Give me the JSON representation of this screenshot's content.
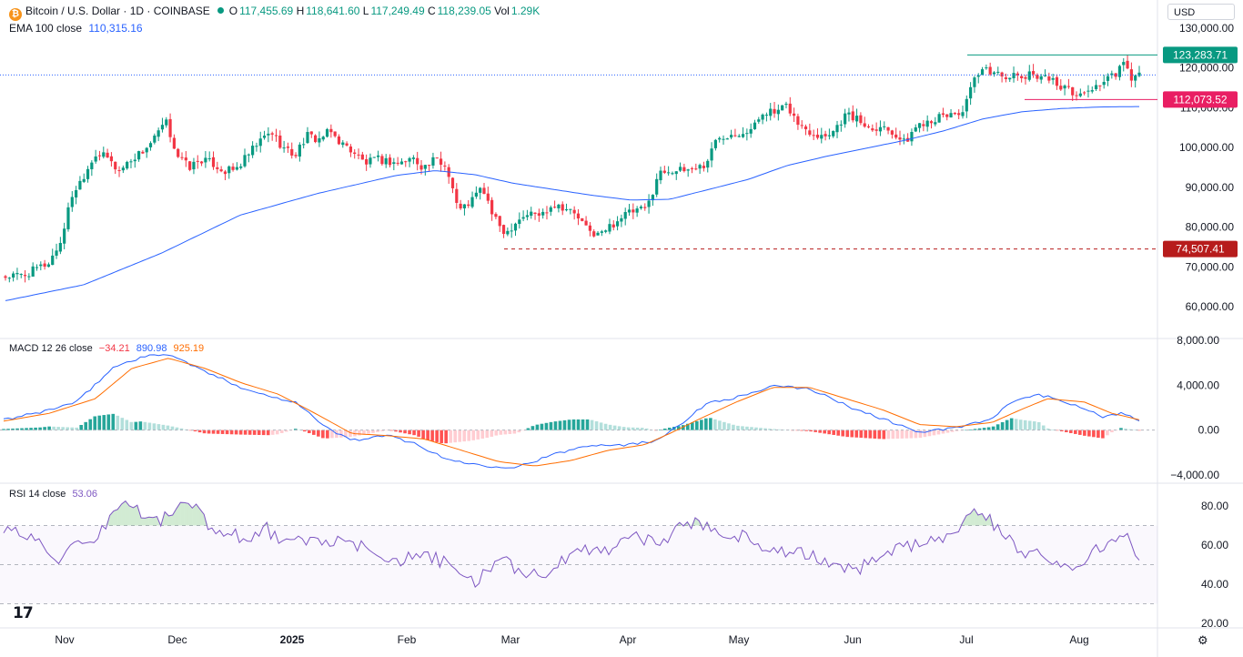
{
  "header": {
    "symbol": "Bitcoin / U.S. Dollar · 1D · COINBASE",
    "ohlc": {
      "o_label": "O",
      "o": "117,455.69",
      "h_label": "H",
      "h": "118,641.60",
      "l_label": "L",
      "l": "117,249.49",
      "c_label": "C",
      "c": "118,239.05",
      "vol_label": "Vol",
      "vol": "1.29K"
    },
    "ema_label": "EMA 100 close",
    "ema_value": "110,315.16",
    "currency": "USD"
  },
  "macd_legend": {
    "label": "MACD 12 26 close",
    "hist": "−34.21",
    "macd": "890.98",
    "signal": "925.19"
  },
  "rsi_legend": {
    "label": "RSI 14 close",
    "value": "53.06"
  },
  "tv_logo": "17",
  "colors": {
    "up": "#089981",
    "down": "#f23645",
    "ema": "#2962ff",
    "macd": "#2962ff",
    "signal": "#ff6d00",
    "rsi": "#7e57c2",
    "grid": "#f0f3fa"
  },
  "chart_data": [
    {
      "type": "candlestick",
      "title": "Bitcoin / U.S. Dollar · 1D · COINBASE",
      "x_ticks": [
        "Nov",
        "Dec",
        "2025",
        "Feb",
        "Mar",
        "Apr",
        "May",
        "Jun",
        "Jul",
        "Aug"
      ],
      "y_ticks": [
        "130,000.00",
        "120,000.00",
        "110,000.00",
        "100,000.00",
        "90,000.00",
        "80,000.00",
        "70,000.00",
        "60,000.00"
      ],
      "ylim": [
        55000,
        133000
      ],
      "price_labels": [
        {
          "value": "123,283.71",
          "color": "#089981",
          "style": "solid"
        },
        {
          "value": "112,073.52",
          "color": "#e91e63",
          "style": "solid"
        },
        {
          "value": "74,507.41",
          "color": "#b71c1c",
          "style": "dashed"
        }
      ],
      "close_path_keyframes": [
        [
          0,
          67500
        ],
        [
          10,
          68000
        ],
        [
          16,
          69500
        ],
        [
          22,
          71000
        ],
        [
          28,
          76000
        ],
        [
          34,
          88000
        ],
        [
          40,
          93000
        ],
        [
          46,
          98500
        ],
        [
          52,
          97500
        ],
        [
          58,
          94000
        ],
        [
          64,
          97000
        ],
        [
          70,
          99000
        ],
        [
          76,
          102000
        ],
        [
          82,
          106500
        ],
        [
          88,
          98000
        ],
        [
          94,
          95000
        ],
        [
          100,
          97000
        ],
        [
          106,
          96000
        ],
        [
          112,
          94000
        ],
        [
          118,
          94500
        ],
        [
          124,
          98000
        ],
        [
          130,
          101500
        ],
        [
          136,
          104000
        ],
        [
          142,
          100000
        ],
        [
          148,
          98000
        ],
        [
          154,
          103000
        ],
        [
          160,
          102000
        ],
        [
          166,
          104000
        ],
        [
          172,
          101000
        ],
        [
          178,
          99000
        ],
        [
          184,
          96000
        ],
        [
          190,
          97000
        ],
        [
          196,
          96500
        ],
        [
          202,
          96000
        ],
        [
          208,
          97500
        ],
        [
          214,
          95000
        ],
        [
          220,
          97000
        ],
        [
          226,
          95000
        ],
        [
          232,
          84000
        ],
        [
          238,
          86500
        ],
        [
          244,
          90000
        ],
        [
          250,
          82000
        ],
        [
          256,
          78500
        ],
        [
          262,
          82000
        ],
        [
          268,
          83500
        ],
        [
          274,
          83000
        ],
        [
          280,
          86000
        ],
        [
          286,
          85000
        ],
        [
          292,
          83000
        ],
        [
          298,
          79000
        ],
        [
          304,
          78000
        ],
        [
          310,
          80500
        ],
        [
          316,
          83000
        ],
        [
          322,
          84000
        ],
        [
          328,
          84500
        ],
        [
          334,
          93500
        ],
        [
          340,
          94500
        ],
        [
          346,
          94000
        ],
        [
          352,
          95000
        ],
        [
          358,
          95500
        ],
        [
          364,
          102500
        ],
        [
          370,
          103500
        ],
        [
          376,
          104000
        ],
        [
          382,
          104500
        ],
        [
          388,
          109500
        ],
        [
          394,
          108500
        ],
        [
          400,
          110500
        ],
        [
          406,
          105500
        ],
        [
          412,
          104000
        ],
        [
          418,
          103000
        ],
        [
          424,
          104500
        ],
        [
          430,
          108500
        ],
        [
          436,
          107000
        ],
        [
          442,
          105000
        ],
        [
          448,
          105500
        ],
        [
          454,
          104000
        ],
        [
          460,
          101000
        ],
        [
          466,
          105500
        ],
        [
          472,
          107000
        ],
        [
          478,
          107500
        ],
        [
          484,
          108500
        ],
        [
          490,
          109000
        ],
        [
          496,
          117500
        ],
        [
          502,
          119500
        ],
        [
          508,
          118500
        ],
        [
          514,
          118000
        ],
        [
          520,
          117500
        ],
        [
          526,
          118500
        ],
        [
          532,
          118000
        ],
        [
          538,
          116000
        ],
        [
          544,
          114500
        ],
        [
          550,
          113000
        ],
        [
          556,
          115000
        ],
        [
          562,
          116500
        ],
        [
          568,
          118500
        ],
        [
          572,
          121000
        ],
        [
          576,
          117500
        ],
        [
          580,
          118200
        ]
      ],
      "ema100_keyframes": [
        [
          0,
          61500
        ],
        [
          40,
          65500
        ],
        [
          80,
          73500
        ],
        [
          120,
          83000
        ],
        [
          160,
          88500
        ],
        [
          200,
          93000
        ],
        [
          220,
          94200
        ],
        [
          240,
          93200
        ],
        [
          260,
          91000
        ],
        [
          280,
          89500
        ],
        [
          300,
          88000
        ],
        [
          320,
          86800
        ],
        [
          340,
          87000
        ],
        [
          360,
          89500
        ],
        [
          380,
          92000
        ],
        [
          400,
          95500
        ],
        [
          420,
          97800
        ],
        [
          440,
          99800
        ],
        [
          460,
          101800
        ],
        [
          480,
          104200
        ],
        [
          500,
          107200
        ],
        [
          520,
          109000
        ],
        [
          540,
          109800
        ],
        [
          560,
          110200
        ],
        [
          580,
          110315
        ]
      ]
    },
    {
      "type": "histogram+line",
      "title": "MACD 12 26 close",
      "y_ticks": [
        "8,000.00",
        "4,000.00",
        "0.00",
        "−4,000.00"
      ],
      "ylim": [
        -5000,
        8000
      ],
      "series": [
        {
          "name": "MACD",
          "keyframes": [
            [
              0,
              900
            ],
            [
              20,
              1600
            ],
            [
              40,
              2500
            ],
            [
              60,
              5600
            ],
            [
              75,
              6500
            ],
            [
              90,
              6800
            ],
            [
              110,
              5200
            ],
            [
              130,
              3800
            ],
            [
              145,
              3000
            ],
            [
              160,
              2500
            ],
            [
              175,
              300
            ],
            [
              190,
              -900
            ],
            [
              210,
              -500
            ],
            [
              225,
              -1200
            ],
            [
              240,
              -2500
            ],
            [
              255,
              -3000
            ],
            [
              265,
              -3200
            ],
            [
              280,
              -3300
            ],
            [
              300,
              -2200
            ],
            [
              320,
              -1300
            ],
            [
              340,
              -1300
            ],
            [
              355,
              -1000
            ],
            [
              370,
              600
            ],
            [
              385,
              2500
            ],
            [
              400,
              2900
            ],
            [
              420,
              3900
            ],
            [
              440,
              3700
            ],
            [
              460,
              2200
            ],
            [
              480,
              1000
            ],
            [
              500,
              -200
            ],
            [
              520,
              200
            ],
            [
              540,
              1000
            ],
            [
              550,
              2500
            ],
            [
              565,
              3200
            ],
            [
              575,
              2700
            ],
            [
              590,
              2000
            ],
            [
              600,
              1100
            ],
            [
              610,
              1500
            ],
            [
              620,
              890
            ]
          ]
        },
        {
          "name": "Signal",
          "keyframes": [
            [
              0,
              800
            ],
            [
              25,
              1500
            ],
            [
              50,
              2800
            ],
            [
              70,
              5500
            ],
            [
              90,
              6400
            ],
            [
              110,
              5500
            ],
            [
              130,
              4200
            ],
            [
              150,
              3200
            ],
            [
              170,
              1500
            ],
            [
              190,
              -300
            ],
            [
              210,
              -500
            ],
            [
              230,
              -800
            ],
            [
              250,
              -1800
            ],
            [
              270,
              -2800
            ],
            [
              290,
              -3200
            ],
            [
              310,
              -2700
            ],
            [
              330,
              -1800
            ],
            [
              350,
              -1300
            ],
            [
              365,
              -200
            ],
            [
              380,
              1000
            ],
            [
              400,
              2500
            ],
            [
              420,
              3800
            ],
            [
              440,
              3800
            ],
            [
              460,
              2800
            ],
            [
              480,
              1800
            ],
            [
              500,
              500
            ],
            [
              520,
              300
            ],
            [
              540,
              700
            ],
            [
              555,
              1800
            ],
            [
              570,
              2800
            ],
            [
              590,
              2500
            ],
            [
              605,
              1500
            ],
            [
              620,
              925
            ]
          ]
        }
      ]
    },
    {
      "type": "line",
      "title": "RSI 14 close",
      "y_ticks": [
        "80.00",
        "60.00",
        "40.00",
        "20.00"
      ],
      "ylim": [
        17,
        87
      ],
      "bands": [
        70,
        50,
        30
      ],
      "keyframes": [
        [
          0,
          68
        ],
        [
          15,
          65
        ],
        [
          25,
          60
        ],
        [
          35,
          52
        ],
        [
          45,
          60
        ],
        [
          55,
          58
        ],
        [
          65,
          75
        ],
        [
          75,
          82
        ],
        [
          82,
          78
        ],
        [
          90,
          72
        ],
        [
          100,
          74
        ],
        [
          110,
          82
        ],
        [
          120,
          78
        ],
        [
          130,
          65
        ],
        [
          140,
          68
        ],
        [
          150,
          60
        ],
        [
          160,
          70
        ],
        [
          170,
          60
        ],
        [
          180,
          62
        ],
        [
          195,
          63
        ],
        [
          210,
          60
        ],
        [
          225,
          58
        ],
        [
          240,
          52
        ],
        [
          255,
          54
        ],
        [
          265,
          53
        ],
        [
          275,
          48
        ],
        [
          285,
          42
        ],
        [
          290,
          40
        ],
        [
          295,
          48
        ],
        [
          305,
          52
        ],
        [
          315,
          47
        ],
        [
          330,
          45
        ],
        [
          340,
          50
        ],
        [
          355,
          58
        ],
        [
          370,
          58
        ],
        [
          385,
          66
        ],
        [
          400,
          60
        ],
        [
          415,
          70
        ],
        [
          425,
          72
        ],
        [
          435,
          68
        ],
        [
          450,
          65
        ],
        [
          470,
          58
        ],
        [
          490,
          55
        ],
        [
          510,
          50
        ],
        [
          520,
          46
        ],
        [
          530,
          52
        ],
        [
          545,
          58
        ],
        [
          560,
          60
        ],
        [
          575,
          64
        ],
        [
          585,
          70
        ],
        [
          595,
          78
        ],
        [
          605,
          72
        ],
        [
          615,
          62
        ],
        [
          625,
          57
        ],
        [
          635,
          56
        ],
        [
          645,
          52
        ],
        [
          655,
          46
        ],
        [
          665,
          55
        ],
        [
          675,
          60
        ],
        [
          685,
          68
        ],
        [
          695,
          53
        ]
      ]
    }
  ]
}
